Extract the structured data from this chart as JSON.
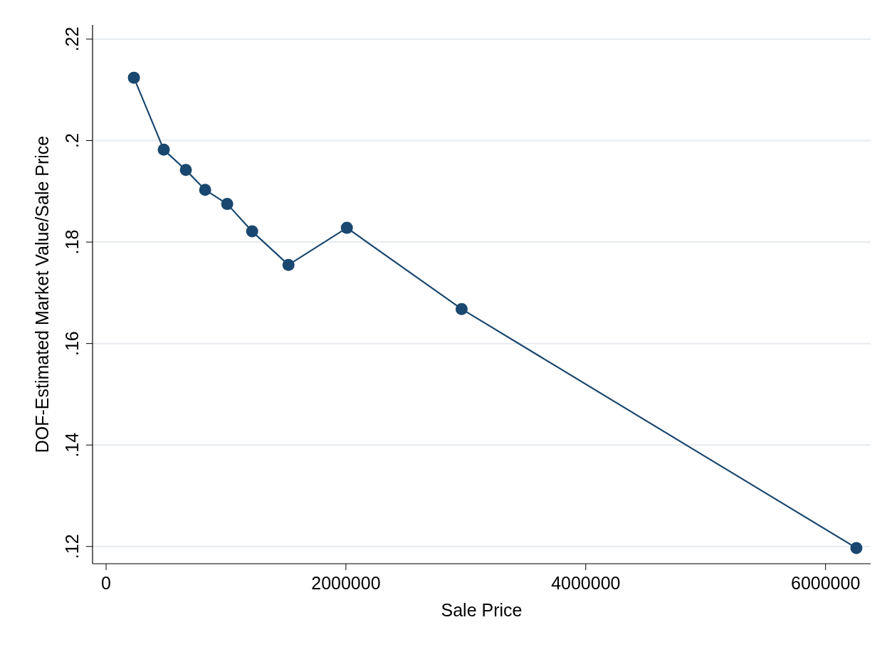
{
  "chart_data": {
    "type": "line",
    "xlabel": "Sale Price",
    "ylabel": "DOF-Estimated Market Value/Sale Price",
    "x": [
      232000,
      481000,
      665000,
      826000,
      1010000,
      1218000,
      1521000,
      2008000,
      2965000,
      6257000
    ],
    "series": [
      {
        "color": "#1a476f",
        "values": [
          0.2124,
          0.1982,
          0.1942,
          0.1903,
          0.1875,
          0.1821,
          0.1755,
          0.1828,
          0.1668,
          0.1197
        ]
      }
    ],
    "xlim": [
      -113000,
      6376000
    ],
    "xticks": [
      0,
      2000000,
      4000000,
      6000000
    ],
    "ylim": [
      0.1166,
      0.2228
    ],
    "yticks": [
      {
        "value": 0.12,
        "label": ".12"
      },
      {
        "value": 0.14,
        "label": ".14"
      },
      {
        "value": 0.16,
        "label": ".16"
      },
      {
        "value": 0.18,
        "label": ".18"
      },
      {
        "value": 0.2,
        "label": ".2"
      },
      {
        "value": 0.22,
        "label": ".22"
      }
    ],
    "grid": "y",
    "marker": "circle",
    "line_style": "solid"
  }
}
